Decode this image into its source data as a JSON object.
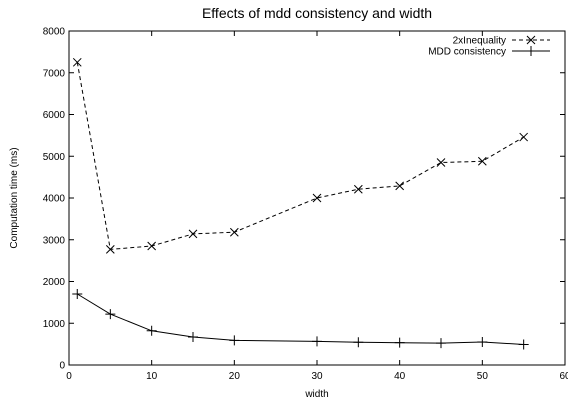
{
  "chart_data": {
    "type": "line",
    "title": "Effects of mdd consistency and width",
    "xlabel": "width",
    "ylabel": "Computation time (ms)",
    "xlim": [
      0,
      60
    ],
    "ylim": [
      0,
      8000
    ],
    "xticks": [
      0,
      10,
      20,
      30,
      40,
      50,
      60
    ],
    "yticks": [
      0,
      1000,
      2000,
      3000,
      4000,
      5000,
      6000,
      7000,
      8000
    ],
    "grid": false,
    "legend_position": "top-right",
    "series": [
      {
        "name": "2xInequality",
        "line_style": "dashed",
        "marker": "x",
        "color": "#000000",
        "x": [
          1,
          5,
          10,
          15,
          20,
          30,
          35,
          40,
          45,
          50,
          55
        ],
        "y": [
          7250,
          2770,
          2850,
          3140,
          3180,
          4000,
          4210,
          4290,
          4850,
          4880,
          5460
        ]
      },
      {
        "name": "MDD consistency",
        "line_style": "solid",
        "marker": "+",
        "color": "#000000",
        "x": [
          1,
          5,
          10,
          15,
          20,
          30,
          35,
          40,
          45,
          50,
          55
        ],
        "y": [
          1700,
          1220,
          820,
          670,
          590,
          565,
          545,
          535,
          525,
          550,
          490
        ]
      }
    ]
  }
}
